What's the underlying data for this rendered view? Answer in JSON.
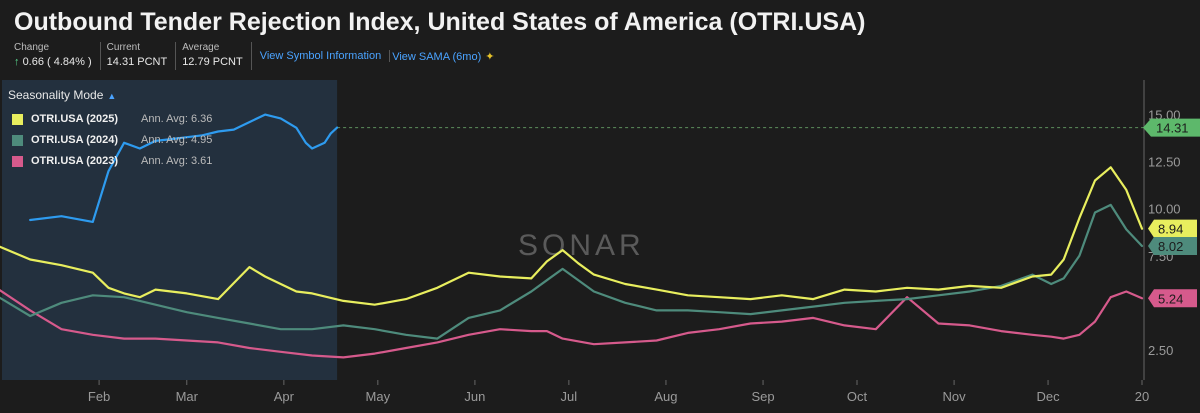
{
  "header": {
    "title": "Outbound Tender Rejection Index, United States of America (OTRI.USA)",
    "change_label": "Change",
    "change_arrow": "↑",
    "change_value": "0.66 ( 4.84% )",
    "current_label": "Current",
    "current_value": "14.31 PCNT",
    "average_label": "Average",
    "average_value": "12.79 PCNT",
    "link_symbol_info": "View Symbol Information",
    "link_sama": "View SAMA (6mo)"
  },
  "legend": {
    "mode_label": "Seasonality Mode",
    "items": [
      {
        "name": "OTRI.USA (2025)",
        "avg": "Ann. Avg: 6.36",
        "color": "#e8ee5e"
      },
      {
        "name": "OTRI.USA (2024)",
        "avg": "Ann. Avg: 4.95",
        "color": "#4e8b7c"
      },
      {
        "name": "OTRI.USA (2023)",
        "avg": "Ann. Avg: 3.61",
        "color": "#d65a8c"
      }
    ]
  },
  "watermark": "SONAR",
  "chart_data": {
    "type": "line",
    "x_axis": {
      "type": "day-of-year",
      "tick_labels": [
        "Feb",
        "Mar",
        "Apr",
        "May",
        "Jun",
        "Jul",
        "Aug",
        "Sep",
        "Oct",
        "Nov",
        "Dec",
        "20"
      ]
    },
    "y_axis": {
      "ticks": [
        "2.50",
        "7.50",
        "10.00",
        "12.50",
        "15.00"
      ],
      "tick_values": [
        2.5,
        7.5,
        10.0,
        12.5,
        15.0
      ],
      "ylim": [
        0.9,
        16.2
      ]
    },
    "current_value_line": 14.31,
    "series": [
      {
        "name": "OTRI.USA (2025)",
        "color": "#2e9bef",
        "end_label": "14.31",
        "x": [
          10,
          20,
          30,
          35,
          40,
          45,
          50,
          55,
          60,
          65,
          70,
          75,
          80,
          85,
          90,
          95,
          98,
          100,
          104,
          106,
          108
        ],
        "y": [
          9.4,
          9.6,
          9.3,
          12.0,
          13.5,
          13.2,
          13.6,
          13.7,
          13.8,
          13.9,
          14.1,
          14.2,
          14.6,
          15.0,
          14.8,
          14.3,
          13.5,
          13.2,
          13.5,
          14.0,
          14.31
        ]
      },
      {
        "name": "OTRI.USA (2024)",
        "color": "#e8ee5e",
        "end_label": "8.94",
        "x": [
          0,
          10,
          20,
          30,
          35,
          40,
          45,
          50,
          60,
          70,
          80,
          85,
          90,
          95,
          100,
          110,
          120,
          130,
          140,
          150,
          160,
          170,
          175,
          180,
          185,
          190,
          200,
          210,
          220,
          230,
          240,
          250,
          260,
          270,
          280,
          290,
          300,
          310,
          320,
          330,
          336,
          340,
          345,
          350,
          355,
          360,
          365
        ],
        "y": [
          8.0,
          7.3,
          7.0,
          6.6,
          5.8,
          5.5,
          5.3,
          5.7,
          5.5,
          5.2,
          6.9,
          6.4,
          6.0,
          5.6,
          5.5,
          5.1,
          4.9,
          5.2,
          5.8,
          6.6,
          6.4,
          6.3,
          7.2,
          7.8,
          7.1,
          6.5,
          6.0,
          5.7,
          5.4,
          5.3,
          5.2,
          5.4,
          5.2,
          5.7,
          5.6,
          5.8,
          5.7,
          5.9,
          5.8,
          6.4,
          6.5,
          7.3,
          9.5,
          11.5,
          12.2,
          11.0,
          8.94
        ]
      },
      {
        "name": "OTRI.USA (2023)",
        "color": "#4e8b7c",
        "end_label": "8.02",
        "x": [
          0,
          10,
          20,
          30,
          40,
          50,
          60,
          70,
          80,
          90,
          100,
          110,
          120,
          130,
          140,
          150,
          160,
          170,
          175,
          180,
          190,
          200,
          210,
          220,
          230,
          240,
          250,
          260,
          270,
          280,
          290,
          300,
          310,
          320,
          330,
          336,
          340,
          345,
          350,
          355,
          360,
          365
        ],
        "y": [
          5.3,
          4.3,
          5.0,
          5.4,
          5.3,
          4.9,
          4.5,
          4.2,
          3.9,
          3.6,
          3.6,
          3.8,
          3.6,
          3.3,
          3.1,
          4.2,
          4.6,
          5.6,
          6.2,
          6.8,
          5.6,
          5.0,
          4.6,
          4.6,
          4.5,
          4.4,
          4.6,
          4.8,
          5.0,
          5.1,
          5.2,
          5.4,
          5.6,
          5.9,
          6.5,
          6.0,
          6.3,
          7.5,
          9.8,
          10.2,
          8.9,
          8.02
        ]
      },
      {
        "name": "OTRI.USA (2023)",
        "color": "#d65a8c",
        "end_label": "5.24",
        "x": [
          0,
          10,
          20,
          30,
          40,
          50,
          60,
          70,
          80,
          90,
          100,
          110,
          120,
          130,
          140,
          150,
          160,
          170,
          175,
          180,
          190,
          200,
          210,
          220,
          230,
          240,
          250,
          260,
          270,
          280,
          290,
          300,
          310,
          320,
          330,
          336,
          340,
          345,
          350,
          355,
          360,
          365
        ],
        "y": [
          5.7,
          4.6,
          3.6,
          3.3,
          3.1,
          3.1,
          3.0,
          2.9,
          2.6,
          2.4,
          2.2,
          2.1,
          2.3,
          2.6,
          2.9,
          3.3,
          3.6,
          3.5,
          3.5,
          3.1,
          2.8,
          2.9,
          3.0,
          3.4,
          3.6,
          3.9,
          4.0,
          4.2,
          3.8,
          3.6,
          5.3,
          3.9,
          3.8,
          3.5,
          3.3,
          3.2,
          3.1,
          3.3,
          4.0,
          5.3,
          5.6,
          5.24
        ]
      }
    ]
  }
}
